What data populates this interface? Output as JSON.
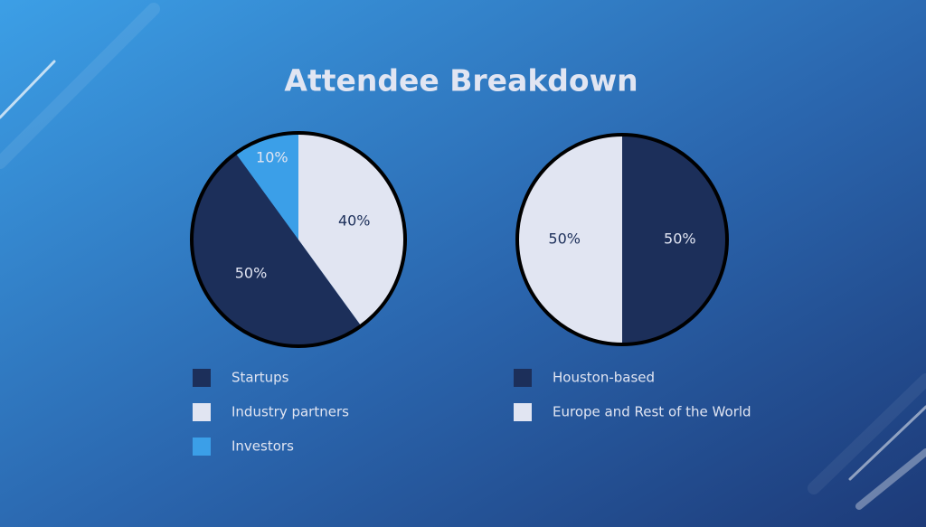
{
  "title": "Attendee Breakdown",
  "chart_data": [
    {
      "type": "pie",
      "start_angle": 324,
      "counterclock": true,
      "series": [
        {
          "name": "Startups",
          "color": "#1c2f5a",
          "values": [
            50
          ],
          "value_labels": [
            "50%"
          ],
          "label_color": "#e1e5f2"
        },
        {
          "name": "Industry partners",
          "color": "#e1e5f2",
          "values": [
            40
          ],
          "value_labels": [
            "40%"
          ],
          "label_color": "#1c2f5a"
        },
        {
          "name": "Investors",
          "color": "#3b9fe8",
          "values": [
            10
          ],
          "value_labels": [
            "10%"
          ],
          "label_color": "#e1e5f2"
        }
      ]
    },
    {
      "type": "pie",
      "start_angle": 180,
      "counterclock": true,
      "series": [
        {
          "name": "Houston-based",
          "color": "#1c2f5a",
          "values": [
            50
          ],
          "value_labels": [
            "50%"
          ],
          "label_color": "#e1e5f2"
        },
        {
          "name": "Europe and Rest of the World",
          "color": "#e1e5f2",
          "values": [
            50
          ],
          "value_labels": [
            "50%"
          ],
          "label_color": "#1c2f5a"
        }
      ]
    }
  ]
}
